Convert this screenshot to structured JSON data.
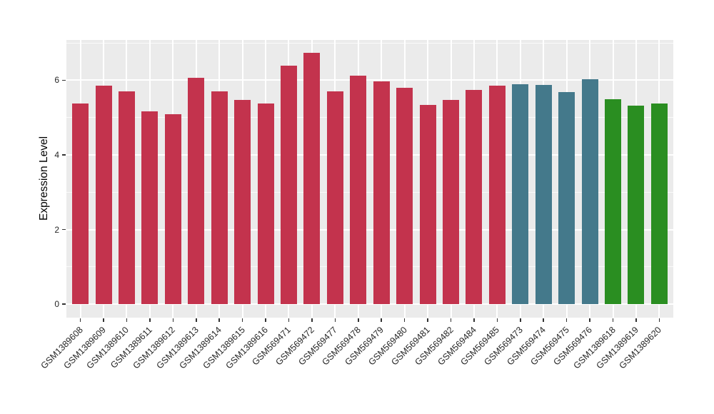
{
  "chart_data": {
    "type": "bar",
    "title": "",
    "xlabel": "",
    "ylabel": "Expression Level",
    "ylim": [
      -0.36,
      7.08
    ],
    "yticks": [
      0,
      2,
      4,
      6
    ],
    "ytick_labels": [
      "0",
      "2",
      "4",
      "6"
    ],
    "minor_gridlines": [
      1,
      3,
      5,
      7
    ],
    "grid": "on",
    "legend_position": "none",
    "panel_bg": "#EBEBEB",
    "grid_color": "#FFFFFF",
    "axis_text_color": "#262626",
    "tick_mark_color": "#333333",
    "palette": [
      "#C3334D",
      "#44798B",
      "#2A8E21"
    ],
    "categories": [
      "GSM1389608",
      "GSM1389609",
      "GSM1389610",
      "GSM1389611",
      "GSM1389612",
      "GSM1389613",
      "GSM1389614",
      "GSM1389615",
      "GSM1389616",
      "GSM569471",
      "GSM569472",
      "GSM569477",
      "GSM569478",
      "GSM569479",
      "GSM569480",
      "GSM569481",
      "GSM569482",
      "GSM569484",
      "GSM569485",
      "GSM569473",
      "GSM569474",
      "GSM569475",
      "GSM569476",
      "GSM1389618",
      "GSM1389619",
      "GSM1389620"
    ],
    "values": [
      5.37,
      5.85,
      5.7,
      5.17,
      5.09,
      6.06,
      5.7,
      5.48,
      5.37,
      6.39,
      6.74,
      5.7,
      6.12,
      5.97,
      5.79,
      5.34,
      5.47,
      5.75,
      5.85,
      5.9,
      5.87,
      5.69,
      6.02,
      5.5,
      5.32,
      5.37
    ],
    "bar_color_index": [
      0,
      0,
      0,
      0,
      0,
      0,
      0,
      0,
      0,
      0,
      0,
      0,
      0,
      0,
      0,
      0,
      0,
      0,
      0,
      1,
      1,
      1,
      1,
      2,
      2,
      2
    ]
  }
}
